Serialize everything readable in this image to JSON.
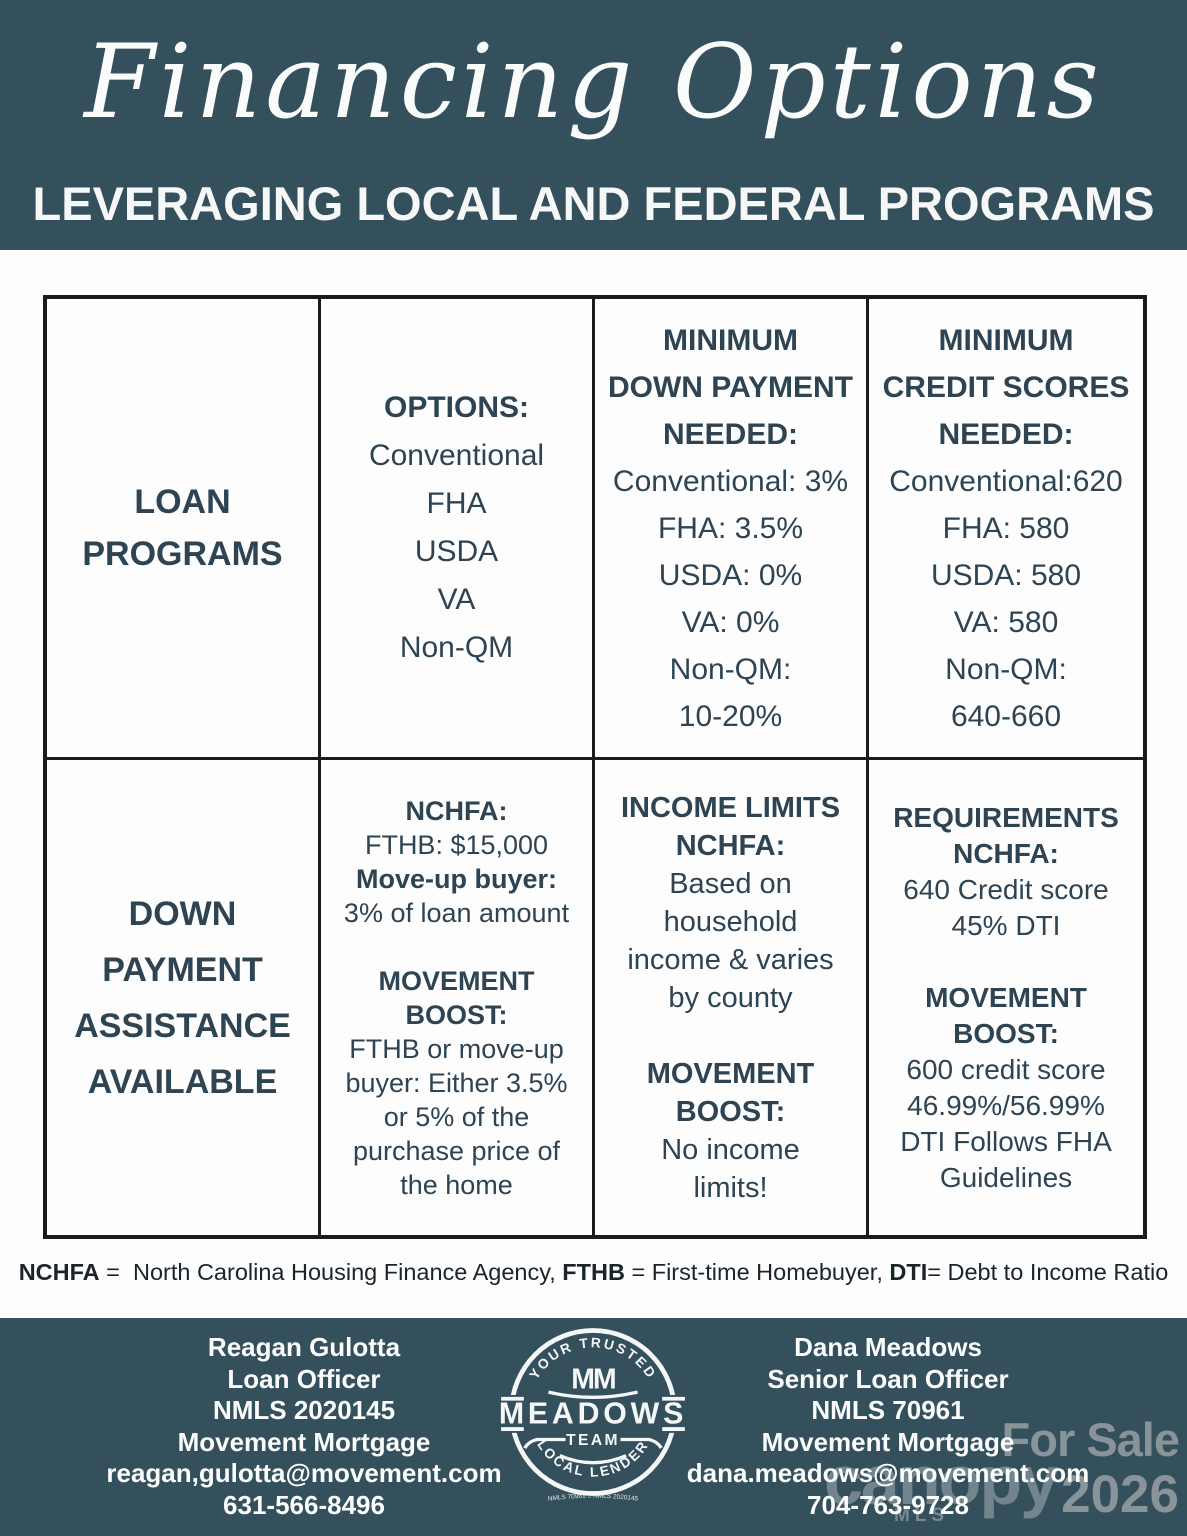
{
  "header": {
    "title": "Financing Options",
    "subtitle": "LEVERAGING LOCAL AND FEDERAL PROGRAMS"
  },
  "table": {
    "row1": {
      "programs": {
        "lines": [
          {
            "text": "LOAN",
            "bold": true
          },
          {
            "text": "PROGRAMS",
            "bold": true
          }
        ]
      },
      "options": {
        "lines": [
          {
            "text": "OPTIONS:",
            "bold": true
          },
          {
            "text": "Conventional"
          },
          {
            "text": "FHA"
          },
          {
            "text": "USDA"
          },
          {
            "text": "VA"
          },
          {
            "text": "Non-QM"
          }
        ]
      },
      "down_payment": {
        "lines": [
          {
            "text": "MINIMUM",
            "bold": true
          },
          {
            "text": "DOWN PAYMENT",
            "bold": true
          },
          {
            "text": "NEEDED:",
            "bold": true
          },
          {
            "text": "Conventional: 3%"
          },
          {
            "text": "FHA: 3.5%"
          },
          {
            "text": "USDA: 0%"
          },
          {
            "text": "VA: 0%"
          },
          {
            "text": "Non-QM:"
          },
          {
            "text": "10-20%"
          }
        ]
      },
      "credit_scores": {
        "lines": [
          {
            "text": "MINIMUM",
            "bold": true
          },
          {
            "text": "CREDIT SCORES",
            "bold": true
          },
          {
            "text": "NEEDED:",
            "bold": true
          },
          {
            "text": "Conventional:620"
          },
          {
            "text": "FHA: 580"
          },
          {
            "text": "USDA: 580"
          },
          {
            "text": "VA: 580"
          },
          {
            "text": "Non-QM:"
          },
          {
            "text": "640-660"
          }
        ]
      }
    },
    "row2": {
      "assistance": {
        "lines": [
          {
            "text": "DOWN",
            "bold": true
          },
          {
            "text": "PAYMENT",
            "bold": true
          },
          {
            "text": "ASSISTANCE",
            "bold": true
          },
          {
            "text": "AVAILABLE",
            "bold": true
          }
        ]
      },
      "amounts": {
        "lines": [
          {
            "text": "NCHFA:",
            "bold": true
          },
          {
            "text": "FTHB: $15,000"
          },
          {
            "text": "Move-up buyer:",
            "bold": true
          },
          {
            "text": "3% of loan amount"
          },
          {
            "text": ""
          },
          {
            "text": "MOVEMENT",
            "bold": true
          },
          {
            "text": "BOOST:",
            "bold": true
          },
          {
            "text": "FTHB or move-up"
          },
          {
            "text": "buyer: Either 3.5%"
          },
          {
            "text": "or 5% of the"
          },
          {
            "text": "purchase price of"
          },
          {
            "text": "the home"
          }
        ]
      },
      "income_limits": {
        "lines": [
          {
            "text": "INCOME LIMITS",
            "bold": true
          },
          {
            "text": "NCHFA:",
            "bold": true
          },
          {
            "text": "Based on"
          },
          {
            "text": "household"
          },
          {
            "text": "income & varies"
          },
          {
            "text": "by county"
          },
          {
            "text": ""
          },
          {
            "text": "MOVEMENT",
            "bold": true
          },
          {
            "text": "BOOST:",
            "bold": true
          },
          {
            "text": "No income"
          },
          {
            "text": "limits!"
          }
        ]
      },
      "requirements": {
        "lines": [
          {
            "text": "REQUIREMENTS",
            "bold": true
          },
          {
            "text": "NCHFA:",
            "bold": true
          },
          {
            "text": "640 Credit score"
          },
          {
            "text": "45% DTI"
          },
          {
            "text": ""
          },
          {
            "text": "MOVEMENT",
            "bold": true
          },
          {
            "text": "BOOST:",
            "bold": true
          },
          {
            "text": "600 credit score"
          },
          {
            "text": "46.99%/56.99%"
          },
          {
            "text": "DTI Follows FHA"
          },
          {
            "text": "Guidelines"
          }
        ]
      }
    }
  },
  "footnote": {
    "segments": [
      {
        "text": "NCHFA",
        "bold": true
      },
      {
        "text": " =  North Carolina Housing Finance Agency, "
      },
      {
        "text": "FTHB",
        "bold": true
      },
      {
        "text": " = First-time Homebuyer, "
      },
      {
        "text": "DTI",
        "bold": true
      },
      {
        "text": "= Debt to Income Ratio"
      }
    ]
  },
  "footer": {
    "left": {
      "lines": [
        "Reagan Gulotta",
        "Loan Officer",
        "NMLS 2020145",
        "Movement Mortgage",
        "reagan,gulotta@movement.com",
        "631-566-8496"
      ]
    },
    "right": {
      "lines": [
        "Dana Meadows",
        "Senior Loan Officer",
        "NMLS 70961",
        "Movement Mortgage",
        "dana.meadows@movement.com",
        "704-763-9728"
      ]
    },
    "logo": {
      "arc_top": "YOUR TRUSTED",
      "monogram": "MM",
      "wordmark": "MEADOWS",
      "team": "TEAM",
      "arc_bottom": "LOCAL LENDER",
      "nmls_line": "NMLS 70961 ⌂ NMLS 2020145"
    },
    "watermark": {
      "for_sale": "For Sale",
      "year": "2026",
      "brand": "canopy",
      "brand_sub": "MLS"
    }
  },
  "colors": {
    "banner_bg": "#34505c",
    "table_text": "#2e4453",
    "table_border": "#1b1b1b",
    "watermark_gray": "#8d979e"
  }
}
